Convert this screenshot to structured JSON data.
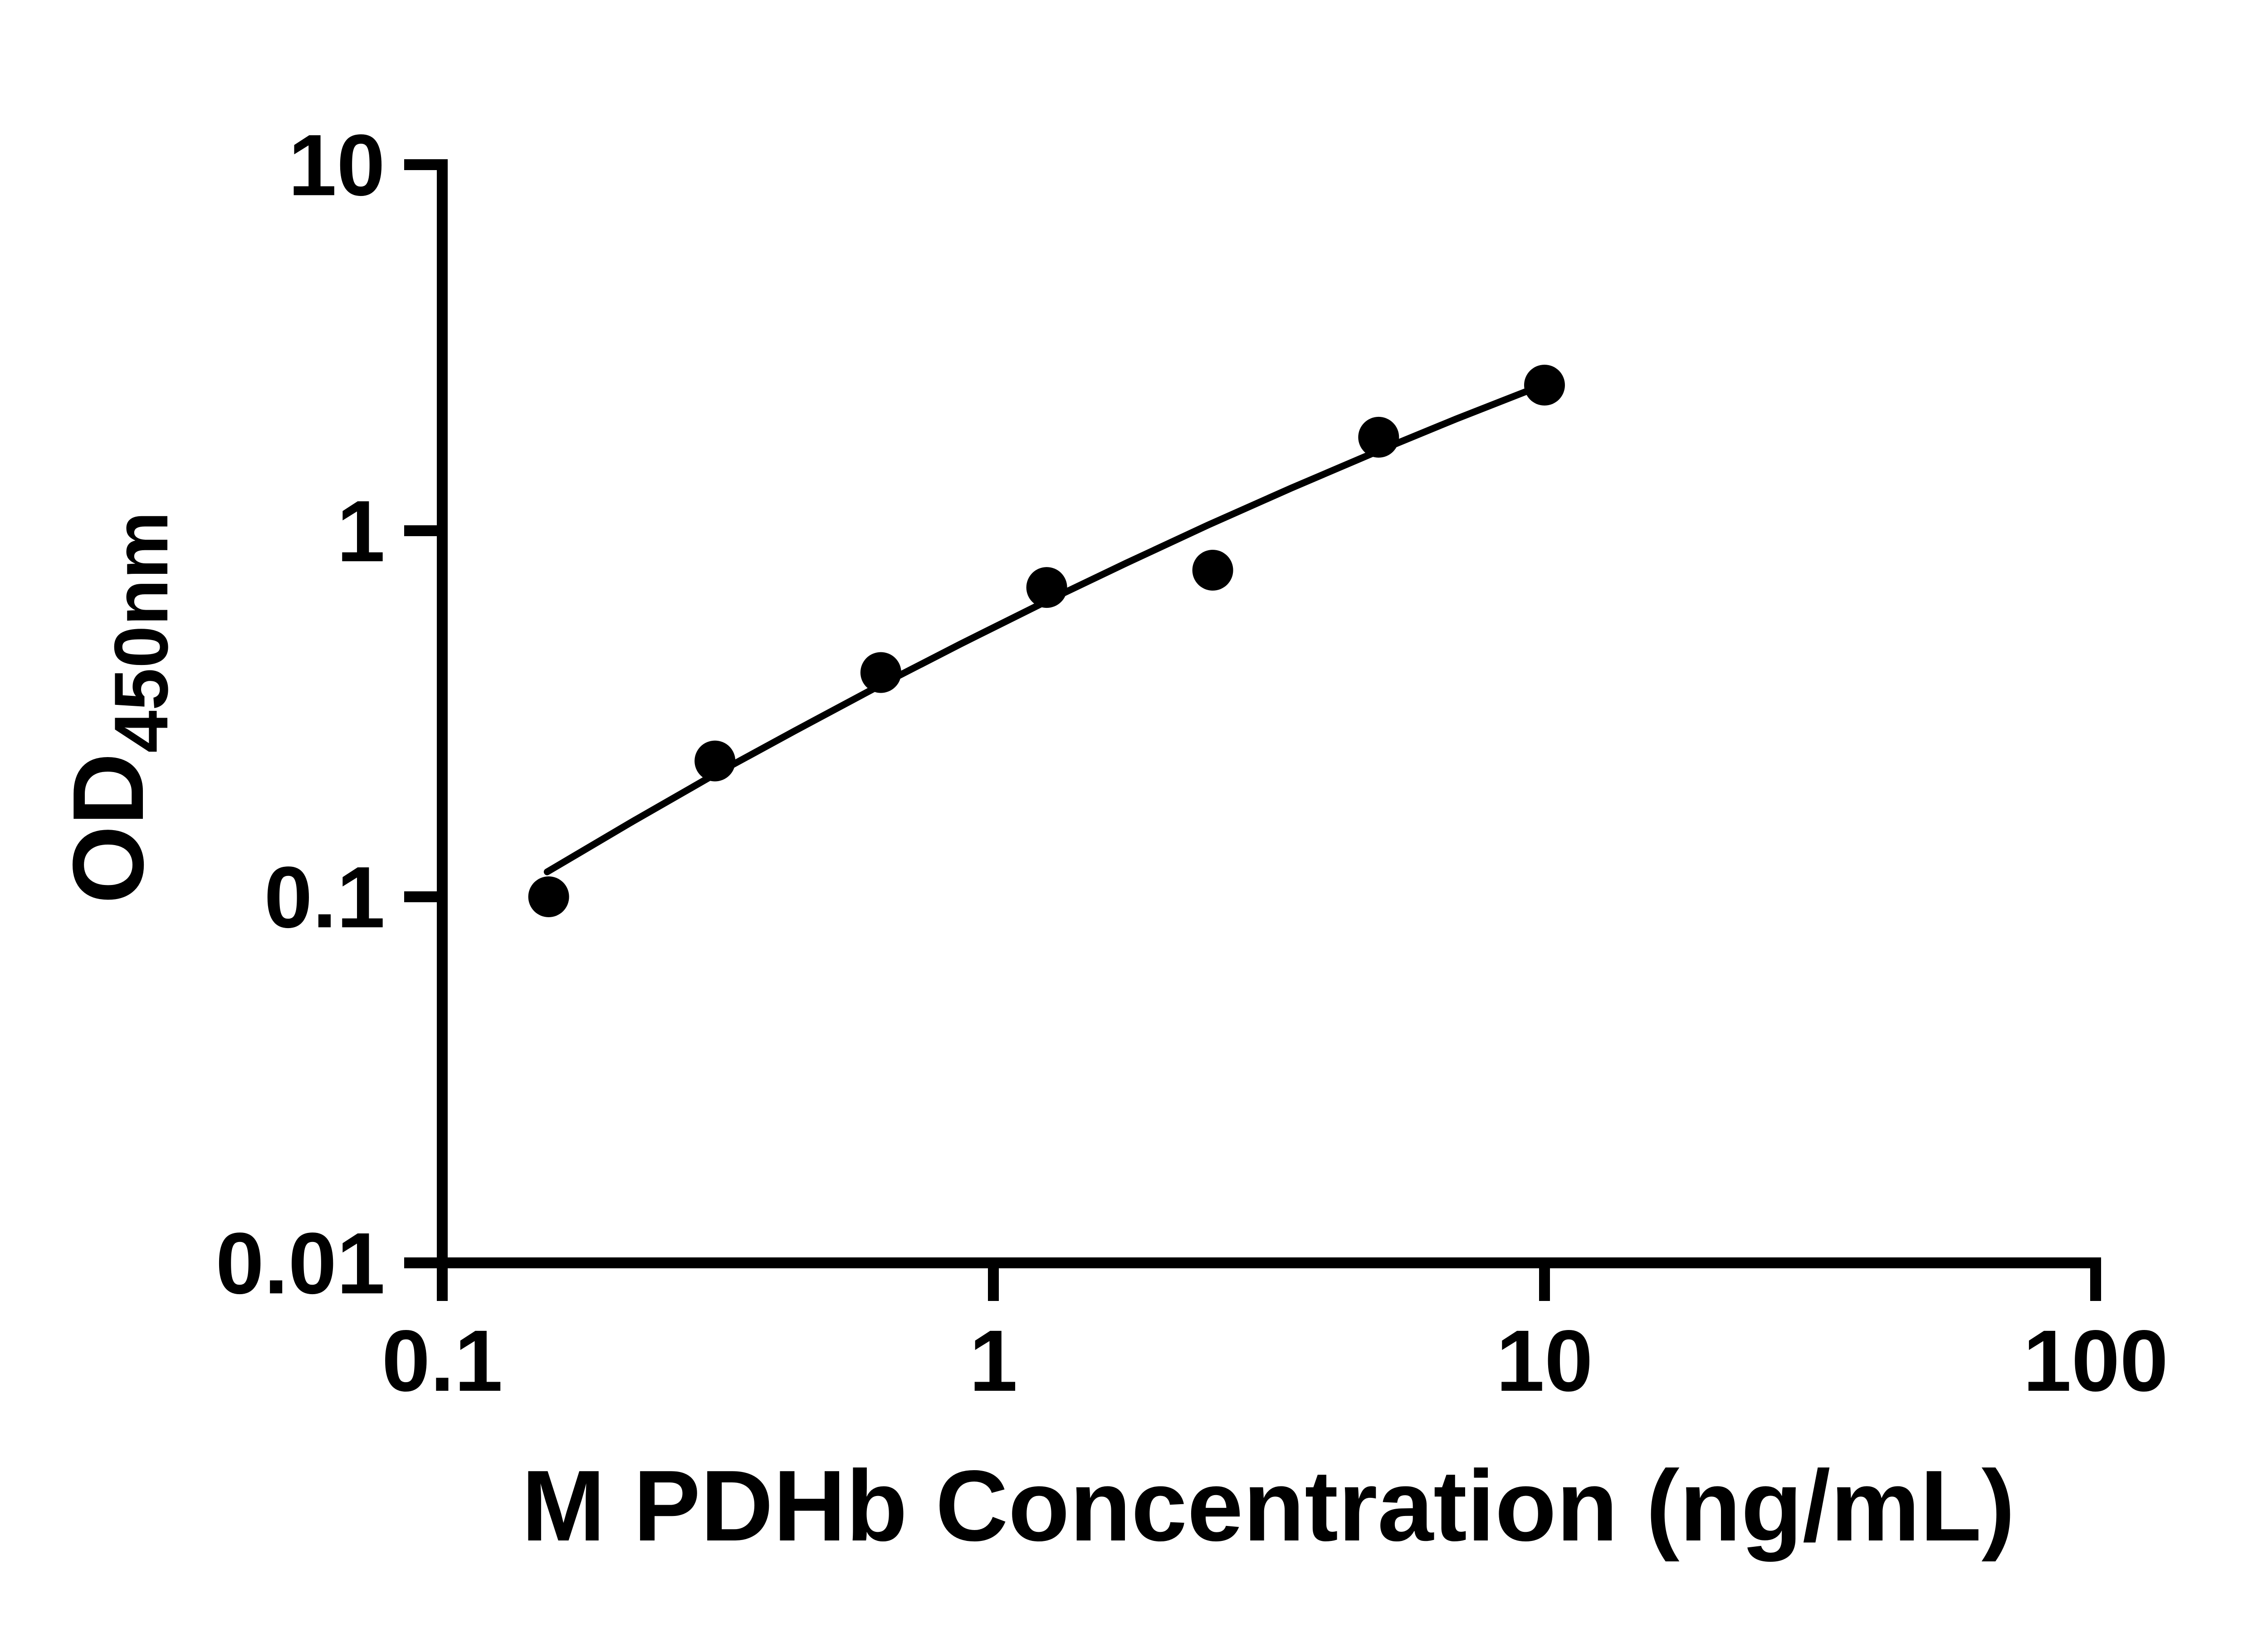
{
  "chart_data": {
    "type": "scatter",
    "title": "",
    "xlabel": "M PDHb Concentration (ng/mL)",
    "ylabel": "OD",
    "ylabel_subscript": "450nm",
    "x_scale": "log",
    "y_scale": "log",
    "xlim": [
      0.1,
      100
    ],
    "ylim": [
      0.01,
      10
    ],
    "x_ticks": [
      0.1,
      1,
      10,
      100
    ],
    "x_tick_labels": [
      "0.1",
      "1",
      "10",
      "100"
    ],
    "y_ticks": [
      0.01,
      0.1,
      1,
      10
    ],
    "y_tick_labels": [
      "0.01",
      "0.1",
      "1",
      "10"
    ],
    "grid": false,
    "legend": null,
    "marker_color": "#000000",
    "line_color": "#000000",
    "axis_color": "#000000",
    "background_color": "#ffffff",
    "points": [
      {
        "x": 0.156,
        "y": 0.1
      },
      {
        "x": 0.3125,
        "y": 0.235
      },
      {
        "x": 0.625,
        "y": 0.41
      },
      {
        "x": 1.25,
        "y": 0.7
      },
      {
        "x": 2.5,
        "y": 0.78
      },
      {
        "x": 5,
        "y": 1.8
      },
      {
        "x": 10,
        "y": 2.5
      }
    ],
    "trend_line": [
      [
        0.155,
        0.117
      ],
      [
        0.219,
        0.159
      ],
      [
        0.309,
        0.214
      ],
      [
        0.436,
        0.284
      ],
      [
        0.616,
        0.375
      ],
      [
        0.871,
        0.49
      ],
      [
        1.23,
        0.635
      ],
      [
        1.74,
        0.815
      ],
      [
        2.45,
        1.036
      ],
      [
        3.47,
        1.307
      ],
      [
        4.9,
        1.632
      ],
      [
        6.92,
        2.021
      ],
      [
        10.0,
        2.512
      ]
    ]
  }
}
